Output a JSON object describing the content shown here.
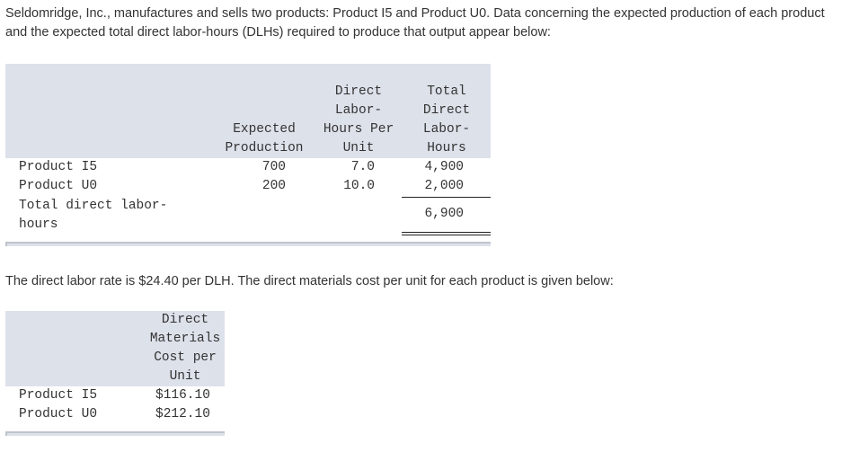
{
  "intro": "Seldomridge, Inc., manufactures and sells two products: Product I5 and Product U0. Data concerning the expected production of each product and the expected total direct labor-hours (DLHs) required to produce that output appear below:",
  "labor_table": {
    "headers": {
      "expected_production": [
        "Expected",
        "Production"
      ],
      "hours_per_unit": [
        "Direct",
        "Labor-",
        "Hours Per",
        "Unit"
      ],
      "total_hours": [
        "Total",
        "Direct",
        "Labor-",
        "Hours"
      ]
    },
    "rows": [
      {
        "label": "Product I5",
        "production": "700",
        "hours_per_unit": "7.0",
        "total": "4,900"
      },
      {
        "label": "Product U0",
        "production": "200",
        "hours_per_unit": "10.0",
        "total": "2,000"
      }
    ],
    "total_row": {
      "label_line1": "Total direct labor-",
      "label_line2": "hours",
      "total": "6,900"
    }
  },
  "middle": "The direct labor rate is $24.40 per DLH. The direct materials cost per unit for each product is given below:",
  "materials_table": {
    "header": [
      "Direct",
      "Materials",
      "Cost per",
      "Unit"
    ],
    "rows": [
      {
        "label": "Product I5",
        "cost": "$116.10"
      },
      {
        "label": "Product U0",
        "cost": "$212.10"
      }
    ]
  }
}
